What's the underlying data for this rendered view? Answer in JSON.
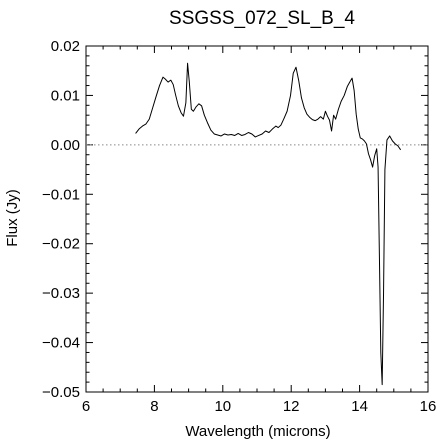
{
  "chart_data": {
    "type": "line",
    "title": "SSGSS_072_SL_B_4",
    "xlabel": "Wavelength (microns)",
    "ylabel": "Flux (Jy)",
    "xlim": [
      6,
      16
    ],
    "ylim": [
      -0.05,
      0.02
    ],
    "grid": false,
    "reference_line": {
      "y": 0.0,
      "style": "dotted"
    },
    "x_ticks": [
      6,
      8,
      10,
      12,
      14,
      16
    ],
    "y_ticks": [
      -0.05,
      -0.04,
      -0.03,
      -0.02,
      -0.01,
      0.0,
      0.01,
      0.02
    ],
    "x_tick_labels": [
      "6",
      "8",
      "10",
      "12",
      "14",
      "16"
    ],
    "y_tick_labels": [
      "−0.05",
      "−0.04",
      "−0.03",
      "−0.02",
      "−0.01",
      "0.00",
      "0.01",
      "0.02"
    ],
    "series": [
      {
        "color": "#000000",
        "points": [
          [
            7.45,
            0.0023
          ],
          [
            7.55,
            0.0032
          ],
          [
            7.65,
            0.0038
          ],
          [
            7.75,
            0.0042
          ],
          [
            7.85,
            0.0052
          ],
          [
            7.95,
            0.0075
          ],
          [
            8.05,
            0.0098
          ],
          [
            8.15,
            0.012
          ],
          [
            8.25,
            0.0137
          ],
          [
            8.32,
            0.0133
          ],
          [
            8.4,
            0.0127
          ],
          [
            8.48,
            0.0131
          ],
          [
            8.55,
            0.0122
          ],
          [
            8.62,
            0.0101
          ],
          [
            8.7,
            0.0079
          ],
          [
            8.78,
            0.0065
          ],
          [
            8.85,
            0.0058
          ],
          [
            8.92,
            0.0085
          ],
          [
            8.97,
            0.0165
          ],
          [
            9.02,
            0.0128
          ],
          [
            9.08,
            0.0072
          ],
          [
            9.14,
            0.0068
          ],
          [
            9.22,
            0.0077
          ],
          [
            9.3,
            0.0083
          ],
          [
            9.38,
            0.0079
          ],
          [
            9.46,
            0.006
          ],
          [
            9.55,
            0.0045
          ],
          [
            9.65,
            0.003
          ],
          [
            9.75,
            0.0022
          ],
          [
            9.85,
            0.002
          ],
          [
            9.95,
            0.0018
          ],
          [
            10.05,
            0.0022
          ],
          [
            10.15,
            0.002
          ],
          [
            10.25,
            0.0021
          ],
          [
            10.35,
            0.0019
          ],
          [
            10.45,
            0.0023
          ],
          [
            10.55,
            0.0019
          ],
          [
            10.65,
            0.0021
          ],
          [
            10.75,
            0.0025
          ],
          [
            10.85,
            0.0022
          ],
          [
            10.95,
            0.0016
          ],
          [
            11.05,
            0.0019
          ],
          [
            11.15,
            0.0022
          ],
          [
            11.25,
            0.0028
          ],
          [
            11.35,
            0.0025
          ],
          [
            11.45,
            0.0032
          ],
          [
            11.55,
            0.0038
          ],
          [
            11.62,
            0.0035
          ],
          [
            11.7,
            0.004
          ],
          [
            11.78,
            0.0052
          ],
          [
            11.88,
            0.0068
          ],
          [
            11.98,
            0.01
          ],
          [
            12.06,
            0.0145
          ],
          [
            12.14,
            0.0157
          ],
          [
            12.22,
            0.013
          ],
          [
            12.3,
            0.0095
          ],
          [
            12.38,
            0.0075
          ],
          [
            12.46,
            0.0062
          ],
          [
            12.55,
            0.0055
          ],
          [
            12.62,
            0.0051
          ],
          [
            12.7,
            0.0049
          ],
          [
            12.78,
            0.0052
          ],
          [
            12.86,
            0.0057
          ],
          [
            12.94,
            0.0052
          ],
          [
            13.0,
            0.0068
          ],
          [
            13.06,
            0.0058
          ],
          [
            13.12,
            0.005
          ],
          [
            13.18,
            0.0028
          ],
          [
            13.24,
            0.006
          ],
          [
            13.3,
            0.0052
          ],
          [
            13.38,
            0.0072
          ],
          [
            13.46,
            0.0088
          ],
          [
            13.55,
            0.01
          ],
          [
            13.64,
            0.0118
          ],
          [
            13.72,
            0.0128
          ],
          [
            13.78,
            0.0135
          ],
          [
            13.84,
            0.011
          ],
          [
            13.9,
            0.0062
          ],
          [
            13.96,
            0.0032
          ],
          [
            14.02,
            0.0014
          ],
          [
            14.08,
            0.0012
          ],
          [
            14.14,
            0.0008
          ],
          [
            14.2,
            0.0002
          ],
          [
            14.26,
            -0.0018
          ],
          [
            14.32,
            -0.003
          ],
          [
            14.38,
            -0.0045
          ],
          [
            14.44,
            -0.0022
          ],
          [
            14.5,
            -0.0008
          ],
          [
            14.54,
            -0.0045
          ],
          [
            14.58,
            -0.023
          ],
          [
            14.62,
            -0.042
          ],
          [
            14.66,
            -0.0485
          ],
          [
            14.7,
            -0.03
          ],
          [
            14.74,
            -0.005
          ],
          [
            14.8,
            0.001
          ],
          [
            14.88,
            0.0018
          ],
          [
            14.96,
            0.0008
          ],
          [
            15.04,
            0.0002
          ],
          [
            15.12,
            -0.0002
          ],
          [
            15.2,
            -0.001
          ]
        ]
      }
    ]
  }
}
